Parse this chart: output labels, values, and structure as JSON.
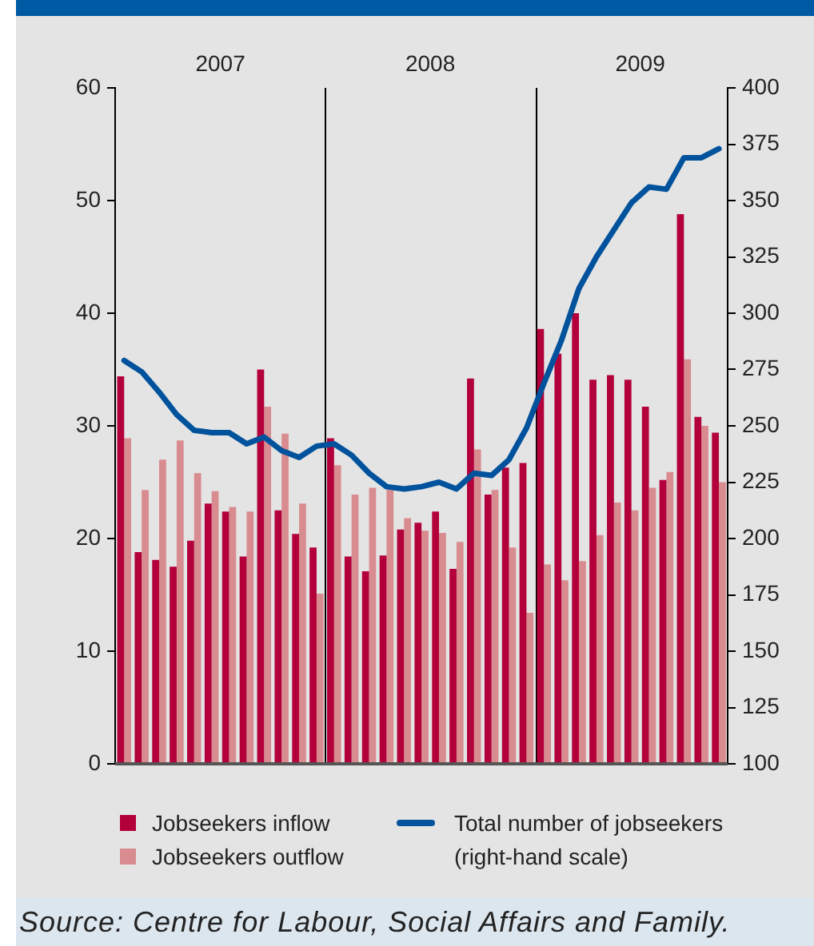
{
  "chart_data": {
    "type": "bar",
    "x": [
      "2007-01",
      "2007-02",
      "2007-03",
      "2007-04",
      "2007-05",
      "2007-06",
      "2007-07",
      "2007-08",
      "2007-09",
      "2007-10",
      "2007-11",
      "2007-12",
      "2008-01",
      "2008-02",
      "2008-03",
      "2008-04",
      "2008-05",
      "2008-06",
      "2008-07",
      "2008-08",
      "2008-09",
      "2008-10",
      "2008-11",
      "2008-12",
      "2009-01",
      "2009-02",
      "2009-03",
      "2009-04",
      "2009-05",
      "2009-06",
      "2009-07",
      "2009-08",
      "2009-09",
      "2009-10",
      "2009-11"
    ],
    "xlim": [
      "2006-12-16",
      "2009-11-16"
    ],
    "xticks": [
      {
        "value": "2007-06-16",
        "label": "2007"
      },
      {
        "value": "2008-06-16",
        "label": "2008"
      },
      {
        "value": "2009-06-16",
        "label": "2009"
      }
    ],
    "ylim": [
      0,
      60
    ],
    "yticks": [
      0,
      10,
      20,
      30,
      40,
      50,
      60
    ],
    "y2lim": [
      100,
      400
    ],
    "y2ticks": [
      100,
      125,
      150,
      175,
      200,
      225,
      250,
      275,
      300,
      325,
      350,
      375,
      400
    ],
    "series": [
      {
        "name": "Jobseekers inflow",
        "color": "#b3003b",
        "values": [
          34.4,
          18.8,
          18.1,
          17.5,
          19.8,
          23.1,
          22.4,
          18.4,
          35.0,
          22.5,
          20.4,
          19.2,
          28.9,
          18.4,
          17.1,
          18.5,
          20.8,
          21.4,
          22.4,
          17.3,
          34.2,
          23.9,
          26.3,
          26.7,
          38.6,
          36.4,
          40.0,
          34.1,
          34.5,
          34.1,
          31.7,
          25.2,
          48.8,
          30.8,
          29.4
        ]
      },
      {
        "name": "Jobseekers outflow",
        "color": "#d98c8f",
        "values": [
          28.9,
          24.3,
          27.0,
          28.7,
          25.8,
          24.2,
          22.8,
          22.4,
          31.7,
          29.3,
          23.1,
          15.1,
          26.5,
          23.9,
          24.5,
          24.3,
          21.8,
          20.7,
          20.5,
          19.7,
          27.9,
          24.3,
          19.2,
          13.4,
          17.7,
          16.3,
          18.0,
          20.3,
          23.2,
          22.5,
          24.5,
          25.9,
          35.9,
          30.0,
          25.0
        ]
      },
      {
        "name": "Total number of jobseekers (right-hand scale)",
        "type": "line",
        "axis": "y2",
        "color": "#00529c",
        "values": [
          279,
          274,
          265,
          255,
          248,
          247,
          247,
          242,
          245,
          239,
          236,
          241,
          242,
          237,
          229,
          223,
          222,
          223,
          225,
          222,
          229,
          228,
          235,
          249,
          269,
          288,
          311,
          325,
          337,
          349,
          356,
          355,
          369,
          369,
          373
        ]
      }
    ],
    "ref_lines": [
      {
        "axis": "x",
        "value": "2007-12-16",
        "color": "#000000"
      },
      {
        "axis": "x",
        "value": "2008-12-16",
        "color": "#000000"
      }
    ],
    "legend": "bottom",
    "annotations": [
      "Source: Centre for Labour, Social Affairs and Family."
    ]
  }
}
